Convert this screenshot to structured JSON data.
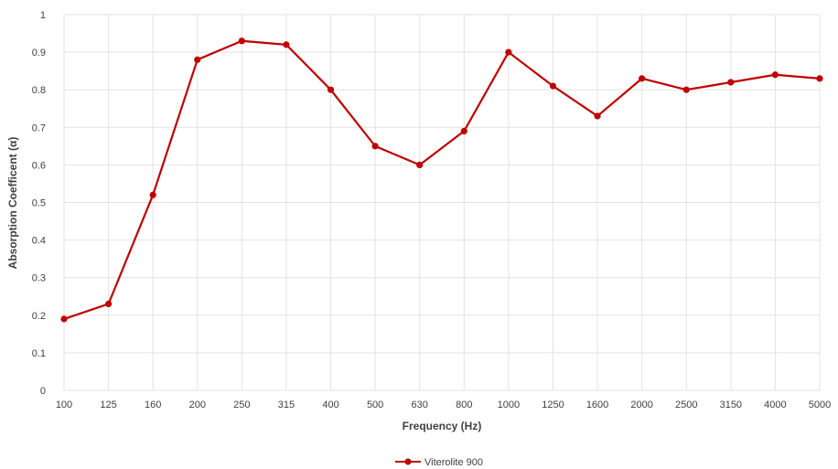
{
  "chart_data": {
    "type": "line",
    "xlabel": "Frequency (Hz)",
    "ylabel": "Absorption Coefficent (α)",
    "categories": [
      "100",
      "125",
      "160",
      "200",
      "250",
      "315",
      "400",
      "500",
      "630",
      "800",
      "1000",
      "1250",
      "1600",
      "2000",
      "2500",
      "3150",
      "4000",
      "5000"
    ],
    "ylim": [
      0,
      1
    ],
    "yticks": [
      "0",
      "0.1",
      "0.2",
      "0.3",
      "0.4",
      "0.5",
      "0.6",
      "0.7",
      "0.8",
      "0.9",
      "1"
    ],
    "grid": true,
    "legend_position": "bottom",
    "series": [
      {
        "name": "Viterolite 900",
        "color": "#c00000",
        "values": [
          0.19,
          0.23,
          0.52,
          0.88,
          0.93,
          0.92,
          0.8,
          0.65,
          0.6,
          0.69,
          0.9,
          0.81,
          0.73,
          0.83,
          0.8,
          0.82,
          0.84,
          0.83
        ]
      }
    ]
  }
}
